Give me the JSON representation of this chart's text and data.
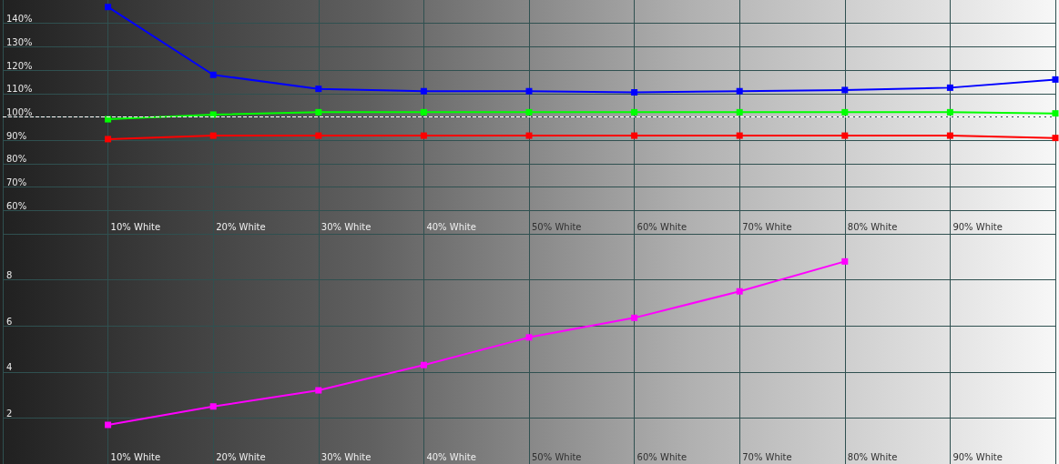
{
  "chart_data": [
    {
      "type": "line",
      "categories": [
        null,
        "10% White",
        "20% White",
        "30% White",
        "40% White",
        "50% White",
        "60% White",
        "70% White",
        "80% White",
        "90% White",
        null
      ],
      "series": [
        {
          "color": "#0000ff",
          "values": [
            null,
            147,
            118,
            112,
            111,
            111,
            110.5,
            111,
            111.5,
            112.5,
            116
          ]
        },
        {
          "color": "#00ff00",
          "values": [
            null,
            99,
            101,
            102,
            102,
            102,
            102,
            102,
            102,
            102,
            101.5
          ]
        },
        {
          "color": "#ff0000",
          "values": [
            null,
            90.5,
            92,
            92,
            92,
            92,
            92,
            92,
            92,
            92,
            91
          ]
        }
      ],
      "ylim": [
        50,
        150
      ],
      "yticks": [
        {
          "value": 60,
          "label": "60%"
        },
        {
          "value": 70,
          "label": "70%"
        },
        {
          "value": 80,
          "label": "80%"
        },
        {
          "value": 90,
          "label": "90%"
        },
        {
          "value": 100,
          "label": "100%"
        },
        {
          "value": 110,
          "label": "110%"
        },
        {
          "value": 120,
          "label": "120%"
        },
        {
          "value": 130,
          "label": "130%"
        },
        {
          "value": 140,
          "label": "140%"
        }
      ],
      "ref_lines": [
        {
          "axis": "y",
          "value": 100,
          "color": "#ffffff",
          "line_style": "dashed"
        }
      ],
      "grid": true,
      "marker": "square",
      "line_style": "solid"
    },
    {
      "type": "line",
      "categories": [
        null,
        "10% White",
        "20% White",
        "30% White",
        "40% White",
        "50% White",
        "60% White",
        "70% White",
        "80% White",
        "90% White",
        null
      ],
      "series": [
        {
          "color": "#ff00ff",
          "values": [
            null,
            1.7,
            2.5,
            3.2,
            4.3,
            5.5,
            6.35,
            7.5,
            8.8,
            null,
            null
          ]
        }
      ],
      "ylim": [
        0,
        10
      ],
      "yticks": [
        {
          "value": 0,
          "label": null
        },
        2,
        4,
        6,
        8,
        {
          "value": 10,
          "label": null
        }
      ],
      "grid": true,
      "marker": "square",
      "line_style": "solid"
    }
  ]
}
